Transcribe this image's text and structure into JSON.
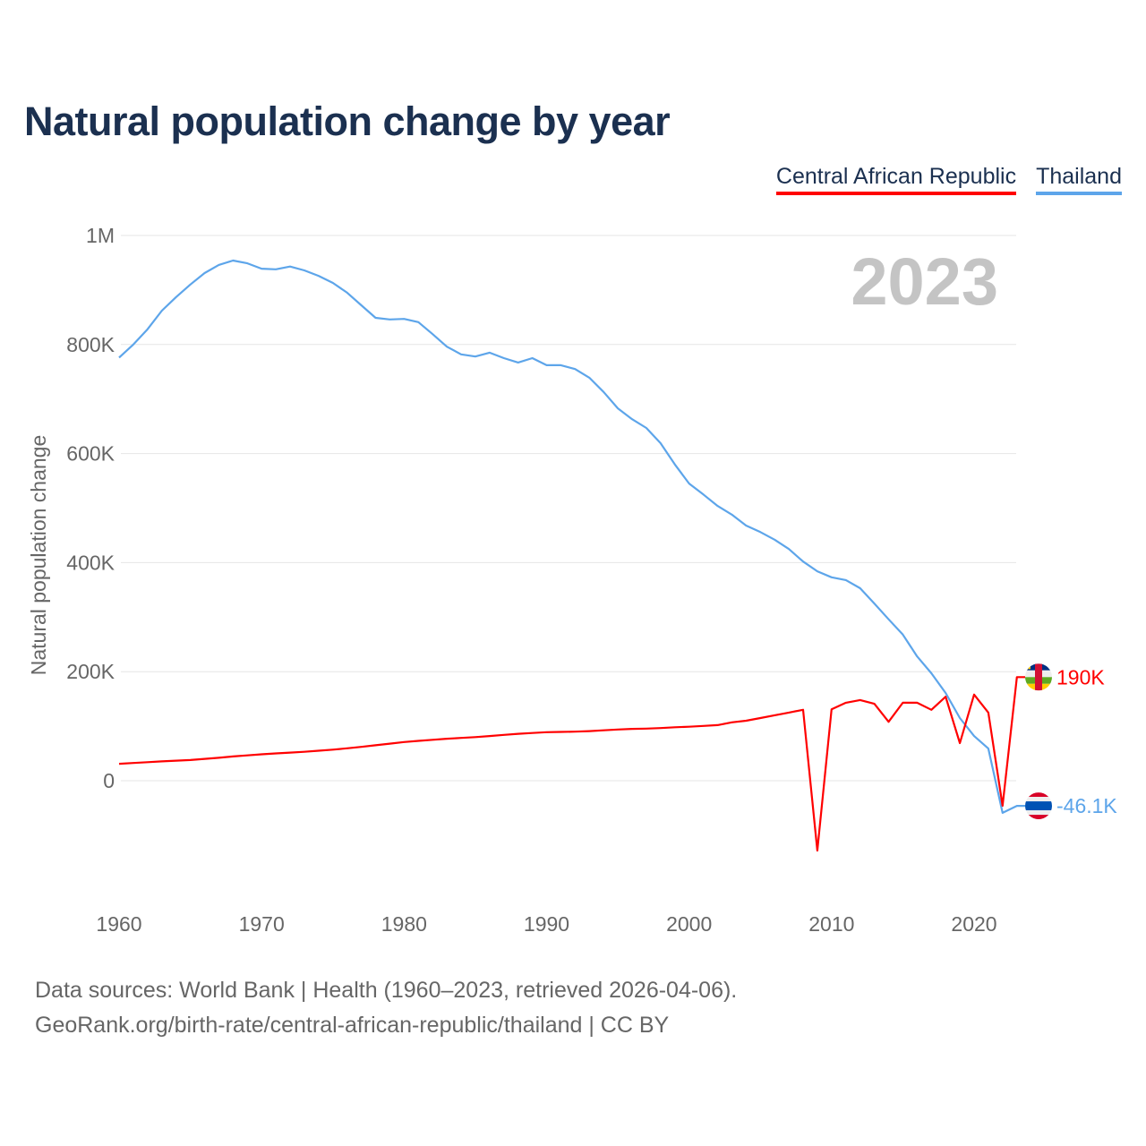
{
  "title": "Natural population change by year",
  "footer": {
    "line1": "Data sources: World Bank | Health (1960–2023, retrieved 2026-04-06).",
    "line2": "GeoRank.org/birth-rate/central-african-republic/thailand | CC BY"
  },
  "chart_data": {
    "type": "line",
    "title": "Natural population change by year",
    "xlabel": "",
    "ylabel": "Natural population change",
    "year_watermark": "2023",
    "xlim": [
      1960,
      2023
    ],
    "ylim": [
      -200000,
      1000000
    ],
    "x_ticks": [
      1960,
      1970,
      1980,
      1990,
      2000,
      2010,
      2020
    ],
    "y_ticks": [
      {
        "value": 0,
        "label": "0"
      },
      {
        "value": 200000,
        "label": "200K"
      },
      {
        "value": 400000,
        "label": "400K"
      },
      {
        "value": 600000,
        "label": "600K"
      },
      {
        "value": 800000,
        "label": "800K"
      },
      {
        "value": 1000000,
        "label": "1M"
      }
    ],
    "grid": true,
    "legend_position": "top-right",
    "x": [
      1960,
      1961,
      1962,
      1963,
      1964,
      1965,
      1966,
      1967,
      1968,
      1969,
      1970,
      1971,
      1972,
      1973,
      1974,
      1975,
      1976,
      1977,
      1978,
      1979,
      1980,
      1981,
      1982,
      1983,
      1984,
      1985,
      1986,
      1987,
      1988,
      1989,
      1990,
      1991,
      1992,
      1993,
      1994,
      1995,
      1996,
      1997,
      1998,
      1999,
      2000,
      2001,
      2002,
      2003,
      2004,
      2005,
      2006,
      2007,
      2008,
      2009,
      2010,
      2011,
      2012,
      2013,
      2014,
      2015,
      2016,
      2017,
      2018,
      2019,
      2020,
      2021,
      2022,
      2023
    ],
    "series": [
      {
        "name": "Central African Republic",
        "color": "#ff0000",
        "end_label": "190K",
        "flag": "central-african-republic-flag",
        "values": [
          31000,
          32500,
          34000,
          35500,
          36800,
          38000,
          40000,
          42000,
          44500,
          46500,
          48500,
          50000,
          51500,
          53000,
          55000,
          57000,
          59500,
          62000,
          65000,
          68000,
          71000,
          73000,
          75000,
          77000,
          78500,
          80000,
          82000,
          84000,
          86000,
          87500,
          89000,
          89500,
          90000,
          91000,
          92500,
          94000,
          95000,
          95500,
          96500,
          98000,
          99000,
          100500,
          102000,
          107000,
          110000,
          115000,
          120000,
          125000,
          130000,
          -128000,
          131000,
          143000,
          148000,
          141000,
          108000,
          143000,
          143000,
          130000,
          154000,
          69000,
          158000,
          125000,
          -46000,
          190000
        ]
      },
      {
        "name": "Thailand",
        "color": "#5da5ea",
        "end_label": "-46.1K",
        "flag": "thailand-flag",
        "values": [
          776000,
          800000,
          828000,
          862000,
          887000,
          910000,
          931000,
          946000,
          954000,
          949000,
          939000,
          938000,
          943000,
          936000,
          926000,
          913000,
          895000,
          872000,
          849000,
          846000,
          847000,
          841000,
          819000,
          796000,
          782000,
          778000,
          785000,
          775000,
          767000,
          775000,
          762000,
          762000,
          755000,
          739000,
          713000,
          683000,
          663000,
          647000,
          619000,
          580000,
          545000,
          525000,
          504000,
          488000,
          468000,
          456000,
          442000,
          425000,
          402000,
          384000,
          373000,
          368000,
          353000,
          325000,
          296000,
          268000,
          228000,
          197000,
          161000,
          115000,
          82000,
          59000,
          -59000,
          -46100
        ]
      }
    ]
  }
}
